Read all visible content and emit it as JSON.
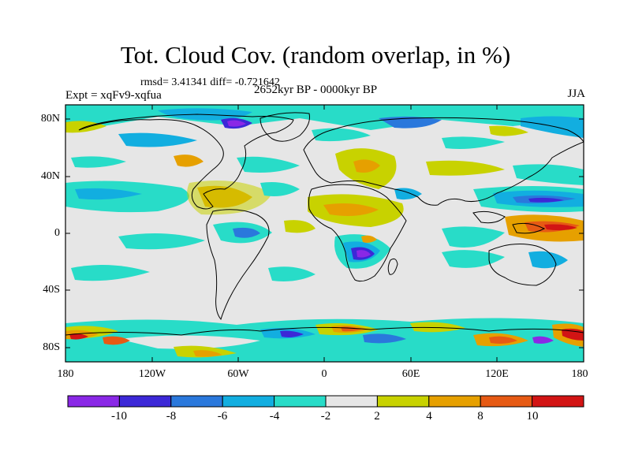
{
  "title": "Tot. Cloud Cov. (random overlap, in %)",
  "stats": "rmsd= 3.41341 diff= -0.721642",
  "experiment": "Expt = xqFv9-xqfua",
  "period": "2652kyr BP - 0000kyr BP",
  "season": "JJA",
  "lat_labels": [
    "80N",
    "40N",
    "0",
    "40S",
    "80S"
  ],
  "lon_labels": [
    "180",
    "120W",
    "60W",
    "0",
    "60E",
    "120E",
    "180"
  ],
  "colorbar": {
    "labels": [
      "-10",
      "-8",
      "-6",
      "-4",
      "-2",
      "2",
      "4",
      "8",
      "10"
    ],
    "colors": [
      "#8a28e6",
      "#3c28d7",
      "#2a78dc",
      "#12aee0",
      "#28dcc8",
      "#e6e6e6",
      "#c8d200",
      "#e6a000",
      "#e65a14",
      "#d21414"
    ]
  },
  "map_colors": {
    "ocean": "#e6e6e6",
    "coast": "#000000"
  }
}
